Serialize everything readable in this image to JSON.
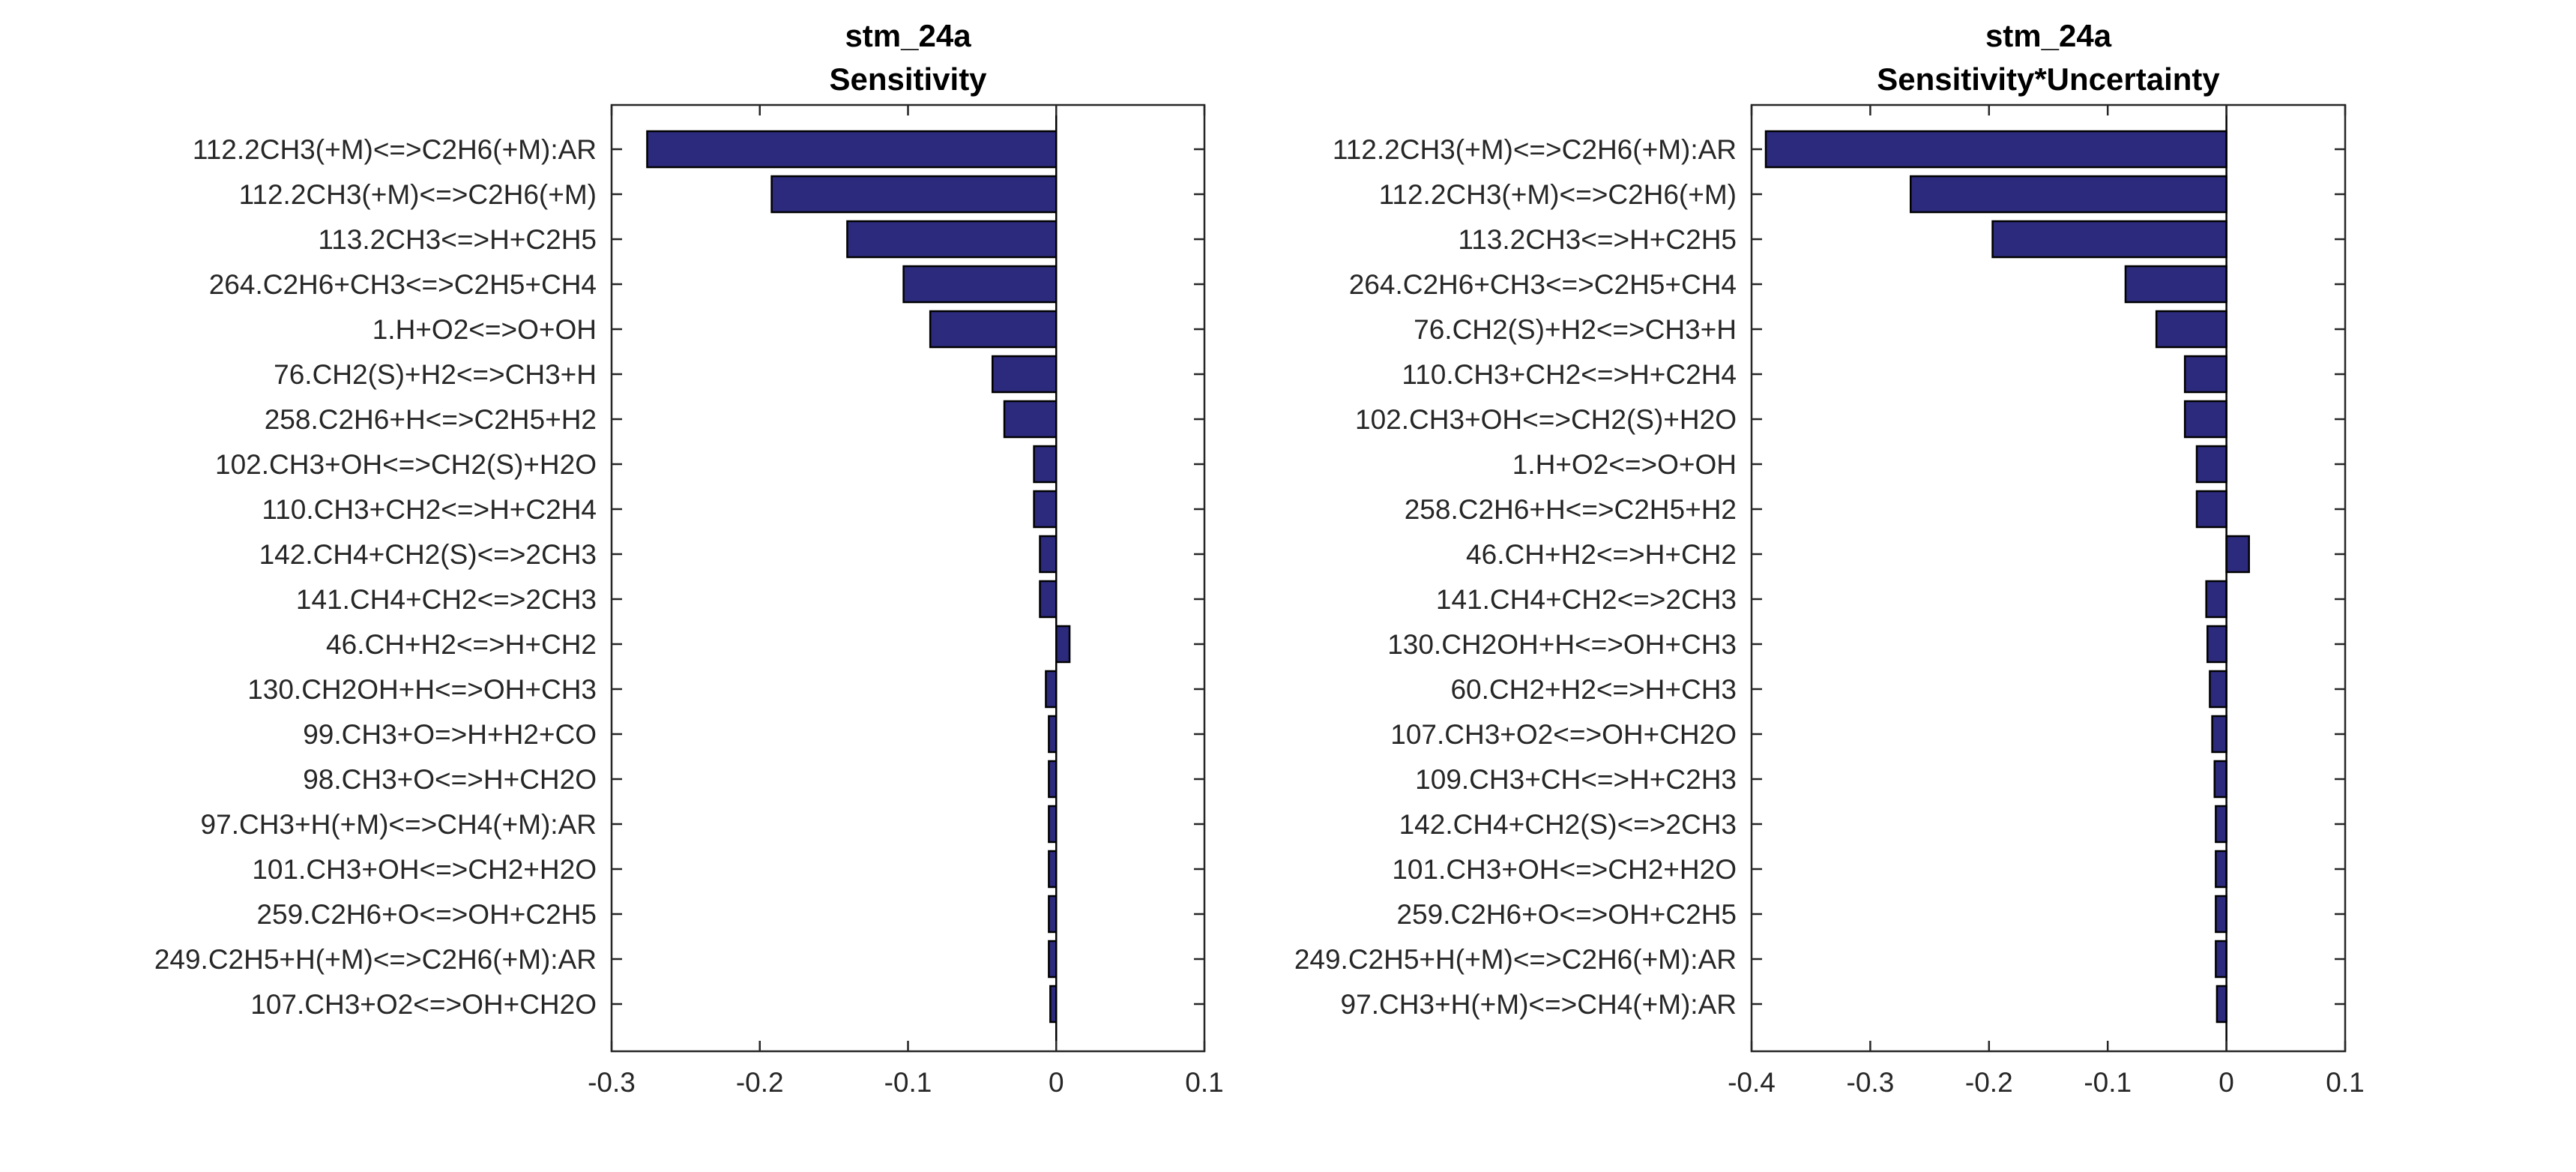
{
  "colors": {
    "bar_fill": "#2c2a7c",
    "bar_edge": "#000000",
    "axis": "#262626"
  },
  "chart_data": [
    {
      "type": "bar",
      "orientation": "horizontal",
      "title": "stm_24a",
      "subtitle": "Sensitivity",
      "xlim": [
        -0.3,
        0.1
      ],
      "xticks": [
        -0.3,
        -0.2,
        -0.1,
        0,
        0.1
      ],
      "xtick_labels": [
        "-0.3",
        "-0.2",
        "-0.1",
        "0",
        "0.1"
      ],
      "categories": [
        "112.2CH3(+M)<=>C2H6(+M):AR",
        "112.2CH3(+M)<=>C2H6(+M)",
        "113.2CH3<=>H+C2H5",
        "264.C2H6+CH3<=>C2H5+CH4",
        "1.H+O2<=>O+OH",
        "76.CH2(S)+H2<=>CH3+H",
        "258.C2H6+H<=>C2H5+H2",
        "102.CH3+OH<=>CH2(S)+H2O",
        "110.CH3+CH2<=>H+C2H4",
        "142.CH4+CH2(S)<=>2CH3",
        "141.CH4+CH2<=>2CH3",
        "46.CH+H2<=>H+CH2",
        "130.CH2OH+H<=>OH+CH3",
        "99.CH3+O=>H+H2+CO",
        "98.CH3+O<=>H+CH2O",
        "97.CH3+H(+M)<=>CH4(+M):AR",
        "101.CH3+OH<=>CH2+H2O",
        "259.C2H6+O<=>OH+C2H5",
        "249.C2H5+H(+M)<=>C2H6(+M):AR",
        "107.CH3+O2<=>OH+CH2O"
      ],
      "values": [
        -0.276,
        -0.192,
        -0.141,
        -0.103,
        -0.085,
        -0.043,
        -0.035,
        -0.015,
        -0.015,
        -0.011,
        -0.011,
        0.009,
        -0.007,
        -0.005,
        -0.005,
        -0.005,
        -0.005,
        -0.005,
        -0.005,
        -0.004
      ]
    },
    {
      "type": "bar",
      "orientation": "horizontal",
      "title": "stm_24a",
      "subtitle": "Sensitivity*Uncertainty",
      "xlim": [
        -0.4,
        0.1
      ],
      "xticks": [
        -0.4,
        -0.3,
        -0.2,
        -0.1,
        0,
        0.1
      ],
      "xtick_labels": [
        "-0.4",
        "-0.3",
        "-0.2",
        "-0.1",
        "0",
        "0.1"
      ],
      "categories": [
        "112.2CH3(+M)<=>C2H6(+M):AR",
        "112.2CH3(+M)<=>C2H6(+M)",
        "113.2CH3<=>H+C2H5",
        "264.C2H6+CH3<=>C2H5+CH4",
        "76.CH2(S)+H2<=>CH3+H",
        "110.CH3+CH2<=>H+C2H4",
        "102.CH3+OH<=>CH2(S)+H2O",
        "1.H+O2<=>O+OH",
        "258.C2H6+H<=>C2H5+H2",
        "46.CH+H2<=>H+CH2",
        "141.CH4+CH2<=>2CH3",
        "130.CH2OH+H<=>OH+CH3",
        "60.CH2+H2<=>H+CH3",
        "107.CH3+O2<=>OH+CH2O",
        "109.CH3+CH<=>H+C2H3",
        "142.CH4+CH2(S)<=>2CH3",
        "101.CH3+OH<=>CH2+H2O",
        "259.C2H6+O<=>OH+C2H5",
        "249.C2H5+H(+M)<=>C2H6(+M):AR",
        "97.CH3+H(+M)<=>CH4(+M):AR"
      ],
      "values": [
        -0.388,
        -0.266,
        -0.197,
        -0.085,
        -0.059,
        -0.035,
        -0.035,
        -0.025,
        -0.025,
        0.019,
        -0.017,
        -0.016,
        -0.014,
        -0.012,
        -0.01,
        -0.009,
        -0.009,
        -0.009,
        -0.009,
        -0.008
      ]
    }
  ]
}
